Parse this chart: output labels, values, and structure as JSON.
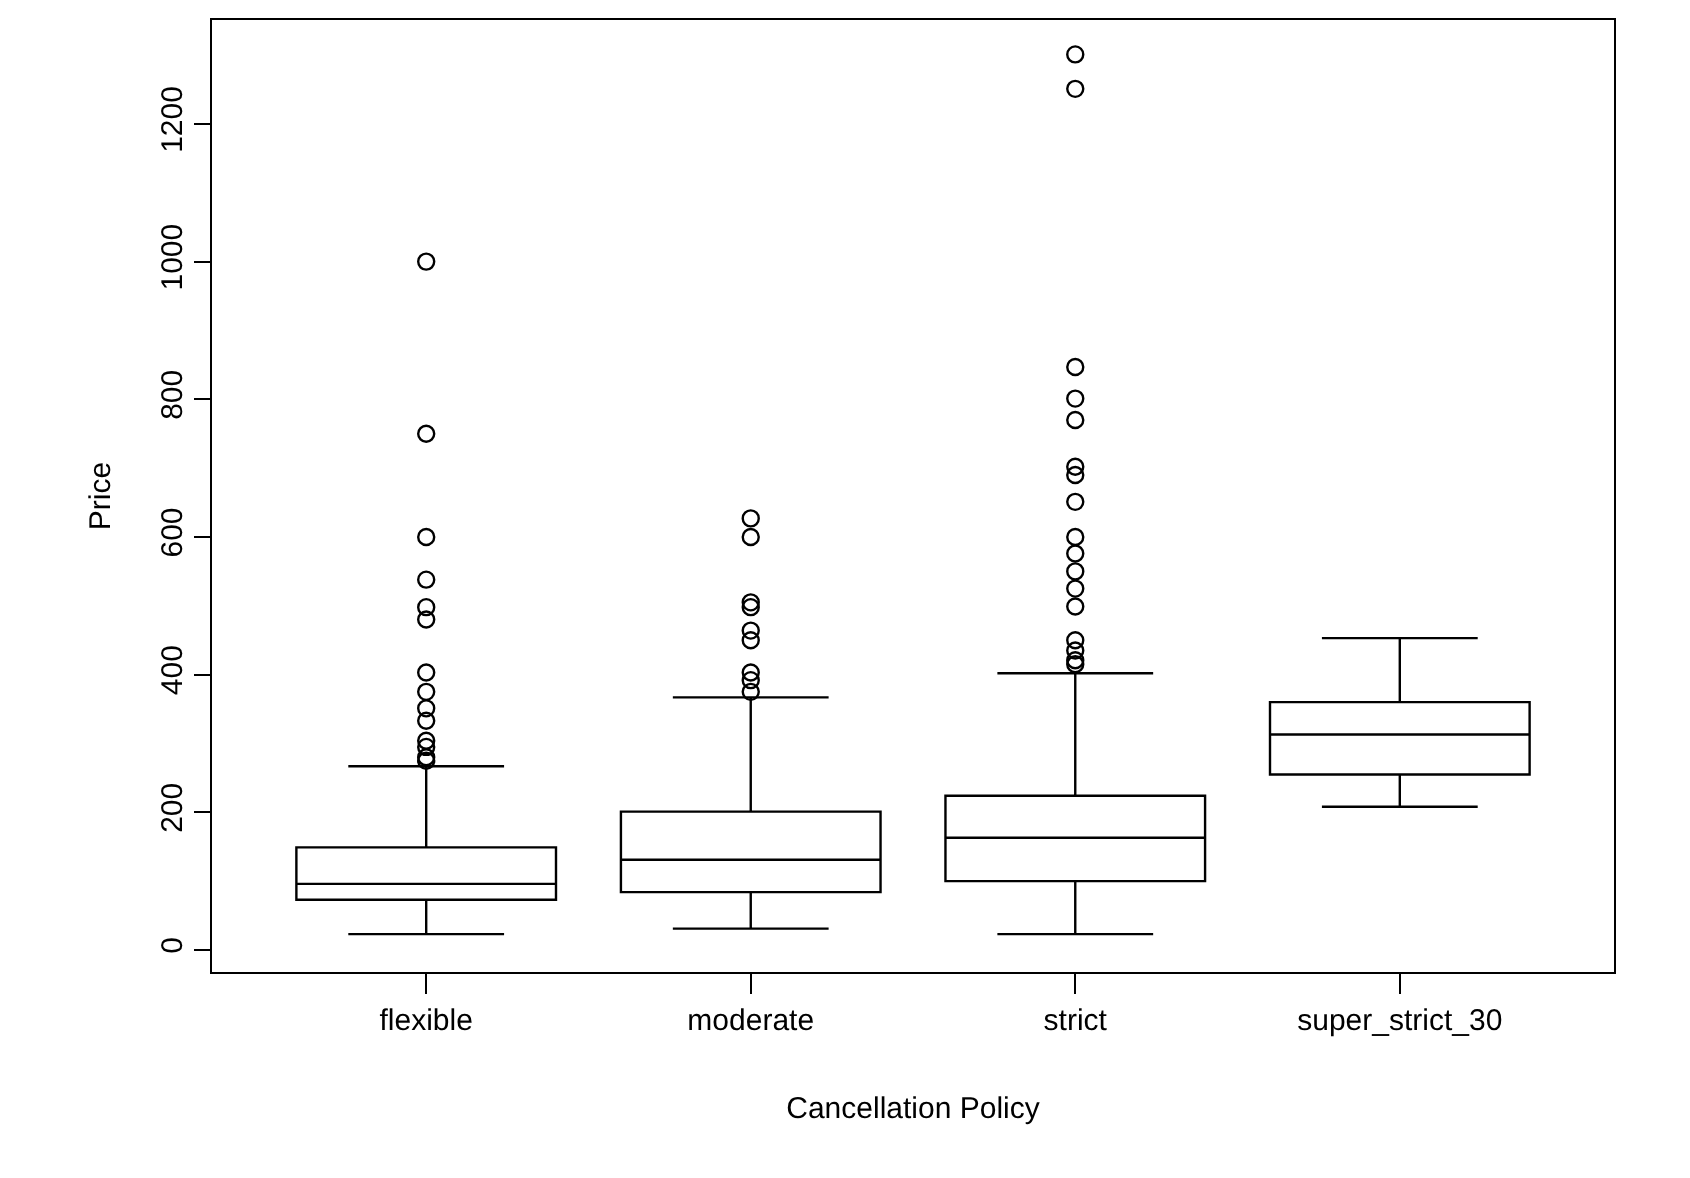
{
  "chart_data": {
    "type": "box",
    "xlabel": "Cancellation Policy",
    "ylabel": "Price",
    "categories": [
      "flexible",
      "moderate",
      "strict",
      "super_strict_30"
    ],
    "ylim": [
      -32,
      1351
    ],
    "yticks": [
      0,
      200,
      400,
      600,
      800,
      1000,
      1200
    ],
    "color": "#000000",
    "boxes": [
      {
        "low": 23,
        "q1": 73,
        "median": 96,
        "q3": 149,
        "high": 267,
        "outliers": [
          1000,
          750,
          600,
          538,
          498,
          480,
          403,
          375,
          351,
          333,
          304,
          295,
          280,
          275
        ]
      },
      {
        "low": 31,
        "q1": 84,
        "median": 131,
        "q3": 201,
        "high": 367,
        "outliers": [
          627,
          600,
          505,
          498,
          464,
          450,
          403,
          392,
          375
        ]
      },
      {
        "low": 23,
        "q1": 100,
        "median": 163,
        "q3": 224,
        "high": 402,
        "outliers": [
          1301,
          1251,
          847,
          801,
          770,
          702,
          690,
          651,
          600,
          576,
          550,
          525,
          499,
          450,
          435,
          421,
          415
        ]
      },
      {
        "low": 208,
        "q1": 255,
        "median": 313,
        "q3": 360,
        "high": 453
      }
    ]
  }
}
